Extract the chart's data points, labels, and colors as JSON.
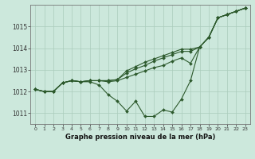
{
  "background_color": "#cce8dc",
  "grid_color": "#aaccbb",
  "line_color": "#2d5a2d",
  "xlabel": "Graphe pression niveau de la mer (hPa)",
  "ylim": [
    1010.5,
    1016.0
  ],
  "xlim": [
    -0.5,
    23.5
  ],
  "yticks": [
    1011,
    1012,
    1013,
    1014,
    1015
  ],
  "xticks": [
    0,
    1,
    2,
    3,
    4,
    5,
    6,
    7,
    8,
    9,
    10,
    11,
    12,
    13,
    14,
    15,
    16,
    17,
    18,
    19,
    20,
    21,
    22,
    23
  ],
  "series": [
    [
      1012.1,
      1012.0,
      1012.0,
      1012.4,
      1012.5,
      1012.45,
      1012.45,
      1012.3,
      1011.85,
      1011.55,
      1011.1,
      1011.55,
      1010.85,
      1010.85,
      1011.15,
      1011.05,
      1011.65,
      1012.5,
      1014.05,
      1014.5,
      1015.4,
      1015.55,
      1015.7,
      1015.85
    ],
    [
      1012.1,
      1012.0,
      1012.0,
      1012.4,
      1012.5,
      1012.45,
      1012.5,
      1012.5,
      1012.45,
      1012.5,
      1012.65,
      1012.8,
      1012.95,
      1013.1,
      1013.2,
      1013.4,
      1013.55,
      1013.3,
      1014.05,
      1014.5,
      1015.4,
      1015.55,
      1015.7,
      1015.85
    ],
    [
      1012.1,
      1012.0,
      1012.0,
      1012.4,
      1012.5,
      1012.45,
      1012.5,
      1012.5,
      1012.5,
      1012.55,
      1012.85,
      1013.05,
      1013.2,
      1013.4,
      1013.55,
      1013.7,
      1013.85,
      1013.85,
      1014.05,
      1014.5,
      1015.4,
      1015.55,
      1015.7,
      1015.85
    ],
    [
      1012.1,
      1012.0,
      1012.0,
      1012.4,
      1012.5,
      1012.45,
      1012.5,
      1012.5,
      1012.5,
      1012.55,
      1012.95,
      1013.15,
      1013.35,
      1013.5,
      1013.65,
      1013.8,
      1013.95,
      1013.95,
      1014.05,
      1014.5,
      1015.4,
      1015.55,
      1015.7,
      1015.85
    ]
  ]
}
